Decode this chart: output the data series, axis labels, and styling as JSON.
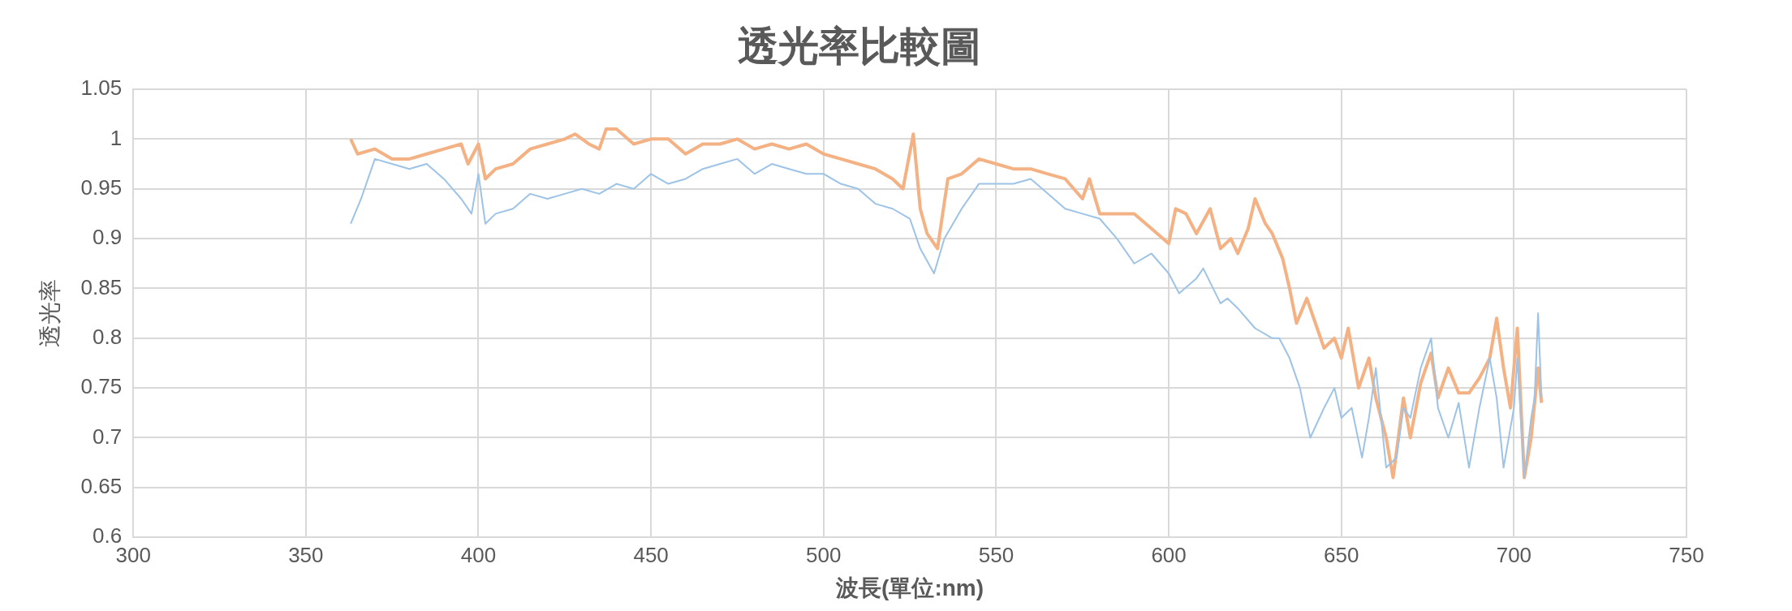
{
  "chart_data": {
    "type": "line",
    "title": "透光率比較圖",
    "xlabel": "波長(單位:nm)",
    "ylabel": "透光率",
    "xlim": [
      300,
      750
    ],
    "xticks": [
      300,
      350,
      400,
      450,
      500,
      550,
      600,
      650,
      700,
      750
    ],
    "ylim": [
      0.6,
      1.05
    ],
    "yticks": [
      0.6,
      0.65,
      0.7,
      0.75,
      0.8,
      0.85,
      0.9,
      0.95,
      1,
      1.05
    ],
    "grid": true,
    "legend": false,
    "marker": "none",
    "line_style": "solid",
    "series": [
      {
        "color": "#9dc3e6",
        "x": [
          363,
          366,
          370,
          375,
          380,
          385,
          390,
          395,
          398,
          400,
          402,
          405,
          410,
          415,
          420,
          425,
          430,
          435,
          440,
          445,
          450,
          455,
          460,
          465,
          470,
          475,
          480,
          485,
          490,
          495,
          500,
          505,
          510,
          515,
          520,
          525,
          528,
          532,
          535,
          540,
          545,
          550,
          555,
          560,
          565,
          570,
          575,
          580,
          585,
          590,
          595,
          600,
          603,
          608,
          610,
          615,
          617,
          620,
          625,
          630,
          632,
          635,
          638,
          641,
          645,
          648,
          650,
          653,
          656,
          658,
          660,
          663,
          666,
          668,
          670,
          673,
          676,
          678,
          681,
          684,
          687,
          690,
          693,
          695,
          697,
          700,
          701,
          703,
          705,
          706,
          707,
          708
        ],
        "values": [
          0.915,
          0.94,
          0.98,
          0.975,
          0.97,
          0.975,
          0.96,
          0.94,
          0.925,
          0.965,
          0.915,
          0.925,
          0.93,
          0.945,
          0.94,
          0.945,
          0.95,
          0.945,
          0.955,
          0.95,
          0.965,
          0.955,
          0.96,
          0.97,
          0.975,
          0.98,
          0.965,
          0.975,
          0.97,
          0.965,
          0.965,
          0.955,
          0.95,
          0.935,
          0.93,
          0.92,
          0.89,
          0.865,
          0.9,
          0.93,
          0.955,
          0.955,
          0.955,
          0.96,
          0.945,
          0.93,
          0.925,
          0.92,
          0.9,
          0.875,
          0.885,
          0.865,
          0.845,
          0.86,
          0.87,
          0.835,
          0.84,
          0.83,
          0.81,
          0.8,
          0.8,
          0.78,
          0.75,
          0.7,
          0.73,
          0.75,
          0.72,
          0.73,
          0.68,
          0.72,
          0.77,
          0.67,
          0.68,
          0.73,
          0.72,
          0.77,
          0.8,
          0.73,
          0.7,
          0.735,
          0.67,
          0.73,
          0.78,
          0.74,
          0.67,
          0.73,
          0.78,
          0.66,
          0.72,
          0.74,
          0.825,
          0.74
        ]
      },
      {
        "color": "#f4b183",
        "x": [
          363,
          365,
          370,
          375,
          380,
          385,
          390,
          395,
          397,
          400,
          402,
          405,
          410,
          415,
          420,
          425,
          428,
          432,
          435,
          437,
          440,
          445,
          450,
          455,
          460,
          465,
          470,
          475,
          480,
          485,
          490,
          495,
          500,
          505,
          510,
          515,
          520,
          523,
          526,
          528,
          530,
          533,
          536,
          540,
          545,
          550,
          555,
          560,
          565,
          570,
          575,
          577,
          580,
          585,
          590,
          595,
          600,
          602,
          605,
          608,
          612,
          615,
          618,
          620,
          623,
          625,
          628,
          630,
          633,
          635,
          637,
          640,
          642,
          645,
          648,
          650,
          652,
          655,
          658,
          660,
          663,
          665,
          668,
          670,
          673,
          676,
          678,
          681,
          684,
          687,
          690,
          693,
          695,
          697,
          699,
          701,
          703,
          705,
          707,
          708
        ],
        "values": [
          1.0,
          0.985,
          0.99,
          0.98,
          0.98,
          0.985,
          0.99,
          0.995,
          0.975,
          0.995,
          0.96,
          0.97,
          0.975,
          0.99,
          0.995,
          1.0,
          1.005,
          0.995,
          0.99,
          1.01,
          1.01,
          0.995,
          1.0,
          1.0,
          0.985,
          0.995,
          0.995,
          1.0,
          0.99,
          0.995,
          0.99,
          0.995,
          0.985,
          0.98,
          0.975,
          0.97,
          0.96,
          0.95,
          1.005,
          0.93,
          0.905,
          0.89,
          0.96,
          0.965,
          0.98,
          0.975,
          0.97,
          0.97,
          0.965,
          0.96,
          0.94,
          0.96,
          0.925,
          0.925,
          0.925,
          0.91,
          0.895,
          0.93,
          0.925,
          0.905,
          0.93,
          0.89,
          0.9,
          0.885,
          0.91,
          0.94,
          0.915,
          0.905,
          0.88,
          0.85,
          0.815,
          0.84,
          0.82,
          0.79,
          0.8,
          0.78,
          0.81,
          0.75,
          0.78,
          0.74,
          0.7,
          0.66,
          0.74,
          0.7,
          0.755,
          0.785,
          0.74,
          0.77,
          0.745,
          0.745,
          0.76,
          0.78,
          0.82,
          0.77,
          0.73,
          0.81,
          0.66,
          0.7,
          0.77,
          0.735
        ]
      }
    ]
  }
}
